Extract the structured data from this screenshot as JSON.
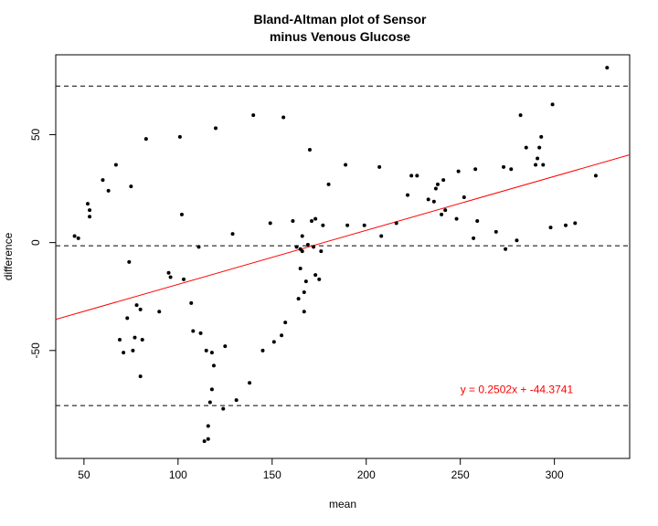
{
  "chart_data": {
    "type": "scatter",
    "title_line1": "Bland-Altman plot of  Sensor",
    "title_line2": "minus Venous Glucose",
    "xlabel": "mean",
    "ylabel": "difference",
    "xlim": [
      35,
      340
    ],
    "ylim": [
      -100,
      87
    ],
    "x_ticks": [
      50,
      100,
      150,
      200,
      250,
      300
    ],
    "y_ticks": [
      -50,
      0,
      50
    ],
    "mean_line": -1.5,
    "upper_loa": 72.5,
    "lower_loa": -75.5,
    "regression": {
      "slope": 0.2502,
      "intercept": -44.3741,
      "label": "y = 0.2502x + -44.3741",
      "color": "#ff0000"
    },
    "points": [
      {
        "x": 45,
        "y": 3
      },
      {
        "x": 47,
        "y": 2
      },
      {
        "x": 52,
        "y": 18
      },
      {
        "x": 53,
        "y": 12
      },
      {
        "x": 53,
        "y": 15
      },
      {
        "x": 60,
        "y": 29
      },
      {
        "x": 63,
        "y": 24
      },
      {
        "x": 67,
        "y": 36
      },
      {
        "x": 69,
        "y": -45
      },
      {
        "x": 71,
        "y": -51
      },
      {
        "x": 73,
        "y": -35
      },
      {
        "x": 74,
        "y": -9
      },
      {
        "x": 75,
        "y": 26
      },
      {
        "x": 76,
        "y": -50
      },
      {
        "x": 77,
        "y": -44
      },
      {
        "x": 78,
        "y": -29
      },
      {
        "x": 80,
        "y": -31
      },
      {
        "x": 80,
        "y": -62
      },
      {
        "x": 81,
        "y": -45
      },
      {
        "x": 83,
        "y": 48
      },
      {
        "x": 90,
        "y": -32
      },
      {
        "x": 95,
        "y": -14
      },
      {
        "x": 96,
        "y": -16
      },
      {
        "x": 101,
        "y": 49
      },
      {
        "x": 102,
        "y": 13
      },
      {
        "x": 103,
        "y": -17
      },
      {
        "x": 107,
        "y": -28
      },
      {
        "x": 108,
        "y": -41
      },
      {
        "x": 111,
        "y": -2
      },
      {
        "x": 112,
        "y": -42
      },
      {
        "x": 114,
        "y": -92
      },
      {
        "x": 115,
        "y": -50
      },
      {
        "x": 116,
        "y": -85
      },
      {
        "x": 116,
        "y": -91
      },
      {
        "x": 117,
        "y": -74
      },
      {
        "x": 118,
        "y": -51
      },
      {
        "x": 118,
        "y": -68
      },
      {
        "x": 119,
        "y": -57
      },
      {
        "x": 120,
        "y": 53
      },
      {
        "x": 124,
        "y": -77
      },
      {
        "x": 125,
        "y": -48
      },
      {
        "x": 129,
        "y": 4
      },
      {
        "x": 131,
        "y": -73
      },
      {
        "x": 138,
        "y": -65
      },
      {
        "x": 140,
        "y": 59
      },
      {
        "x": 145,
        "y": -50
      },
      {
        "x": 149,
        "y": 9
      },
      {
        "x": 151,
        "y": -46
      },
      {
        "x": 155,
        "y": -43
      },
      {
        "x": 156,
        "y": 58
      },
      {
        "x": 157,
        "y": -37
      },
      {
        "x": 161,
        "y": 10
      },
      {
        "x": 163,
        "y": -2
      },
      {
        "x": 164,
        "y": -26
      },
      {
        "x": 165,
        "y": -3
      },
      {
        "x": 165,
        "y": -12
      },
      {
        "x": 166,
        "y": 3
      },
      {
        "x": 166,
        "y": -4
      },
      {
        "x": 167,
        "y": -23
      },
      {
        "x": 167,
        "y": -32
      },
      {
        "x": 168,
        "y": -18
      },
      {
        "x": 169,
        "y": -1
      },
      {
        "x": 170,
        "y": 43
      },
      {
        "x": 171,
        "y": 10
      },
      {
        "x": 172,
        "y": -2
      },
      {
        "x": 173,
        "y": 11
      },
      {
        "x": 173,
        "y": -15
      },
      {
        "x": 175,
        "y": -17
      },
      {
        "x": 176,
        "y": -4
      },
      {
        "x": 177,
        "y": 8
      },
      {
        "x": 180,
        "y": 27
      },
      {
        "x": 189,
        "y": 36
      },
      {
        "x": 190,
        "y": 8
      },
      {
        "x": 199,
        "y": 8
      },
      {
        "x": 207,
        "y": 35
      },
      {
        "x": 208,
        "y": 3
      },
      {
        "x": 216,
        "y": 9
      },
      {
        "x": 222,
        "y": 22
      },
      {
        "x": 224,
        "y": 31
      },
      {
        "x": 227,
        "y": 31
      },
      {
        "x": 233,
        "y": 20
      },
      {
        "x": 236,
        "y": 19
      },
      {
        "x": 237,
        "y": 25
      },
      {
        "x": 238,
        "y": 27
      },
      {
        "x": 240,
        "y": 13
      },
      {
        "x": 241,
        "y": 29
      },
      {
        "x": 242,
        "y": 15
      },
      {
        "x": 248,
        "y": 11
      },
      {
        "x": 249,
        "y": 33
      },
      {
        "x": 252,
        "y": 21
      },
      {
        "x": 257,
        "y": 2
      },
      {
        "x": 258,
        "y": 34
      },
      {
        "x": 259,
        "y": 10
      },
      {
        "x": 269,
        "y": 5
      },
      {
        "x": 273,
        "y": 35
      },
      {
        "x": 274,
        "y": -3
      },
      {
        "x": 277,
        "y": 34
      },
      {
        "x": 280,
        "y": 1
      },
      {
        "x": 282,
        "y": 59
      },
      {
        "x": 285,
        "y": 44
      },
      {
        "x": 290,
        "y": 36
      },
      {
        "x": 291,
        "y": 39
      },
      {
        "x": 292,
        "y": 44
      },
      {
        "x": 293,
        "y": 49
      },
      {
        "x": 294,
        "y": 36
      },
      {
        "x": 298,
        "y": 7
      },
      {
        "x": 299,
        "y": 64
      },
      {
        "x": 306,
        "y": 8
      },
      {
        "x": 311,
        "y": 9
      },
      {
        "x": 322,
        "y": 31
      },
      {
        "x": 328,
        "y": 81
      }
    ]
  }
}
